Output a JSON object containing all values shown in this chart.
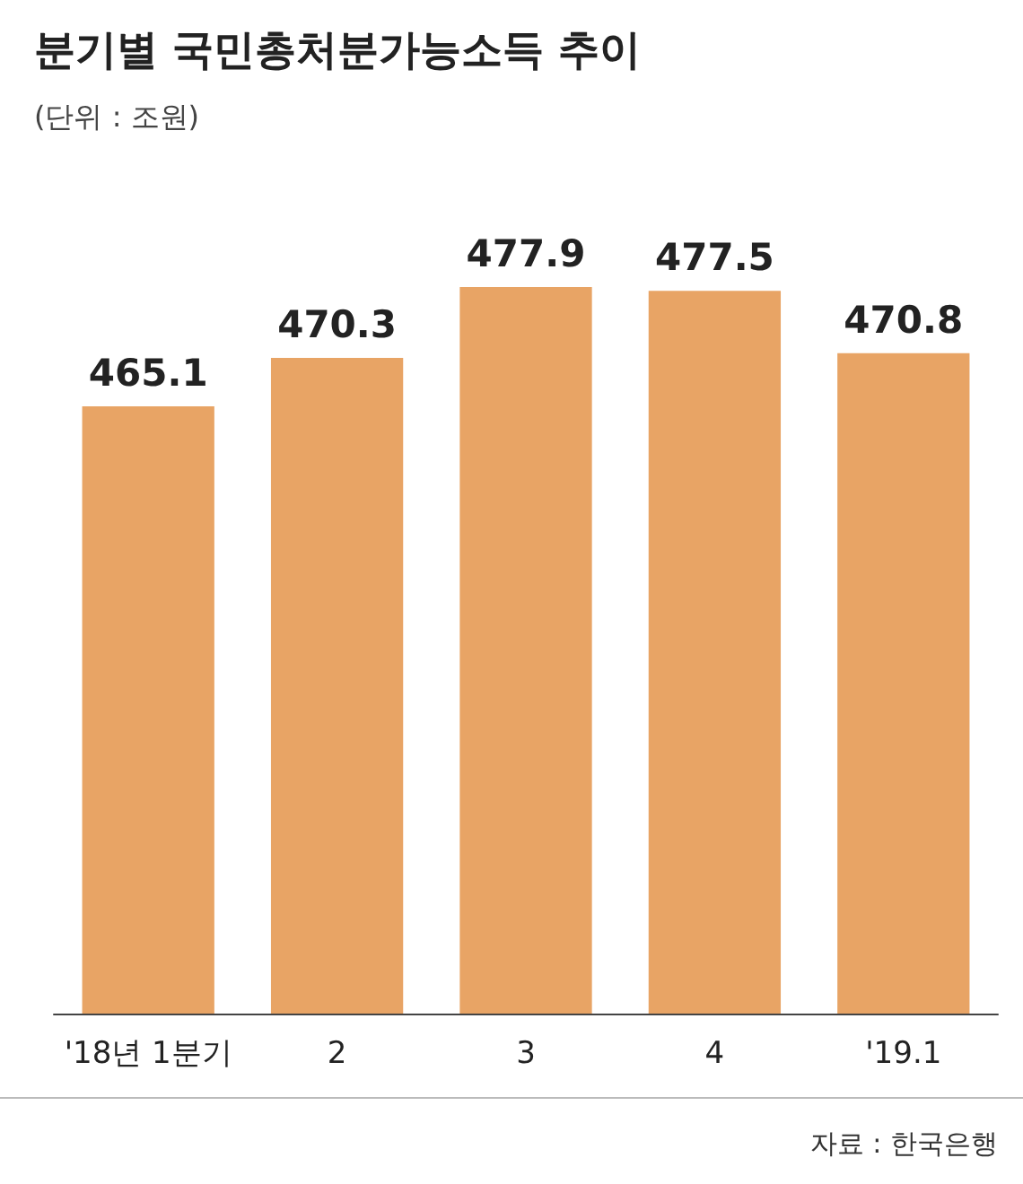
{
  "chart_data": {
    "type": "bar",
    "title": "분기별 국민총처분가능소득 추이",
    "subtitle": "(단위 : 조원)",
    "categories": [
      "'18년 1분기",
      "2",
      "3",
      "4",
      "'19.1"
    ],
    "values": [
      465.1,
      470.3,
      477.9,
      477.5,
      470.8
    ],
    "color": "#e8a465",
    "data_labels": true,
    "ylim": [
      400,
      477.9
    ],
    "annotations": [
      "자료 : 한국은행"
    ]
  }
}
